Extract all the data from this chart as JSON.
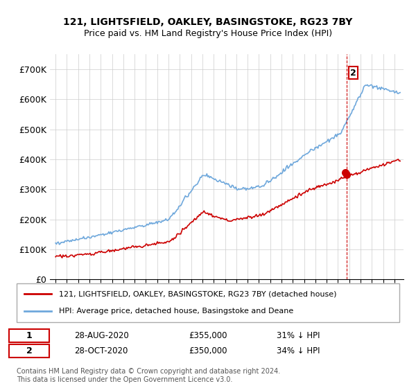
{
  "title1": "121, LIGHTSFIELD, OAKLEY, BASINGSTOKE, RG23 7BY",
  "title2": "Price paid vs. HM Land Registry's House Price Index (HPI)",
  "ylabel": "",
  "ylim": [
    0,
    750000
  ],
  "yticks": [
    0,
    100000,
    200000,
    300000,
    400000,
    500000,
    600000,
    700000
  ],
  "ytick_labels": [
    "£0",
    "£100K",
    "£200K",
    "£300K",
    "£400K",
    "£500K",
    "£600K",
    "£700K"
  ],
  "legend_entry1": "121, LIGHTSFIELD, OAKLEY, BASINGSTOKE, RG23 7BY (detached house)",
  "legend_entry2": "HPI: Average price, detached house, Basingstoke and Deane",
  "note1": "1   28-AUG-2020        £355,000        31% ↓ HPI",
  "note2": "2   28-OCT-2020        £350,000        34% ↓ HPI",
  "footnote": "Contains HM Land Registry data © Crown copyright and database right 2024.\nThis data is licensed under the Open Government Licence v3.0.",
  "sale1_date_idx": 25.67,
  "sale1_price": 355000,
  "sale2_date_idx": 25.83,
  "sale2_price": 350000,
  "hpi_color": "#6fa8dc",
  "price_color": "#cc0000",
  "marker1_color": "#cc0000",
  "marker2_color": "#cc0000",
  "vline_color": "#cc0000",
  "grid_color": "#cccccc",
  "background_color": "#ffffff"
}
